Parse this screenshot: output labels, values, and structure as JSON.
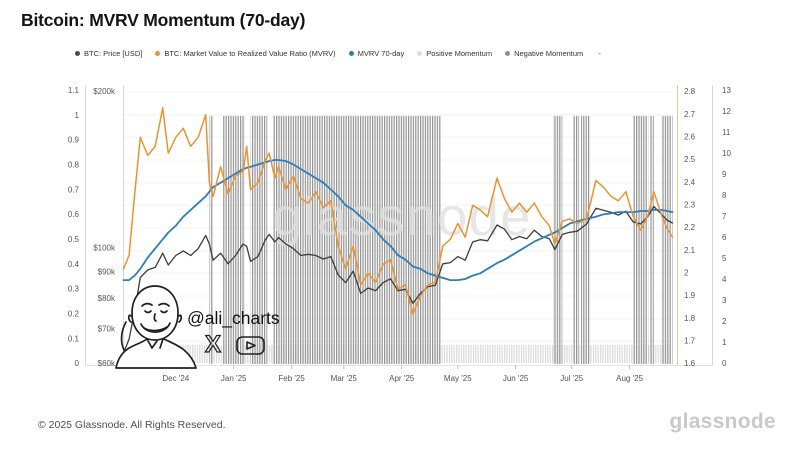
{
  "title": "Bitcoin: MVRV Momentum (70-day)",
  "legend": {
    "items": [
      {
        "label": "BTC: Price [USD]",
        "color": "#4b4b4b"
      },
      {
        "label": "BTC: Market Value to Realized Value Ratio (MVRV)",
        "color": "#ea9430"
      },
      {
        "label": "MVRV 70-day",
        "color": "#2e7dbc"
      },
      {
        "label": "Positive Momentum",
        "color": "#dcdcdc"
      },
      {
        "label": "Negative Momentum",
        "color": "#909090"
      }
    ],
    "more": "-"
  },
  "watermark": "glassnode",
  "annotation": {
    "handle": "@ali_charts"
  },
  "footer": {
    "copyright": "© 2025 Glassnode. All Rights Reserved.",
    "brand": "glassnode"
  },
  "chart_data": {
    "type": "line",
    "title": "Bitcoin: MVRV Momentum (70-day)",
    "grid": "faint-horizontal",
    "legend_position": "top",
    "colors": {
      "price": "#3d3d3d",
      "mvrv": "#ea9430",
      "mvrv70": "#2e7dbc",
      "negative_bars": "#949494",
      "positive_band": "#d9d9d9",
      "mvrv_axis_line": "#f1c78e"
    },
    "axes": {
      "left_outer": {
        "min": 0,
        "max": 1.1,
        "step": 0.1
      },
      "price_log": {
        "values": [
          60,
          70,
          80,
          90,
          100,
          200
        ],
        "labels": [
          "$60k",
          "$70k",
          "$80k",
          "$90k",
          "$100k",
          "$200k"
        ],
        "min": 60,
        "max": 200,
        "scale": "log",
        "unit": "USD thousands"
      },
      "right_mvrv": {
        "min": 1.6,
        "max": 2.8,
        "step": 0.1
      },
      "right_outer": {
        "min": 0,
        "max": 13,
        "step": 1
      }
    },
    "months": [
      {
        "label": "Dec '24",
        "date": "2024-12-01"
      },
      {
        "label": "Jan '25",
        "date": "2025-01-01"
      },
      {
        "label": "Feb '25",
        "date": "2025-02-01"
      },
      {
        "label": "Mar '25",
        "date": "2025-03-01"
      },
      {
        "label": "Apr '25",
        "date": "2025-04-01"
      },
      {
        "label": "May '25",
        "date": "2025-05-01"
      },
      {
        "label": "Jun '25",
        "date": "2025-06-01"
      },
      {
        "label": "Jul '25",
        "date": "2025-07-01"
      },
      {
        "label": "Aug '25",
        "date": "2025-08-01"
      }
    ],
    "dates": [
      "2024-11-03",
      "2024-11-06",
      "2024-11-09",
      "2024-11-12",
      "2024-11-16",
      "2024-11-20",
      "2024-11-24",
      "2024-11-27",
      "2024-12-01",
      "2024-12-05",
      "2024-12-09",
      "2024-12-13",
      "2024-12-17",
      "2024-12-19",
      "2024-12-21",
      "2024-12-25",
      "2024-12-29",
      "2025-01-02",
      "2025-01-06",
      "2025-01-08",
      "2025-01-10",
      "2025-01-14",
      "2025-01-18",
      "2025-01-20",
      "2025-01-23",
      "2025-01-25",
      "2025-01-29",
      "2025-02-02",
      "2025-02-06",
      "2025-02-10",
      "2025-02-14",
      "2025-02-18",
      "2025-02-22",
      "2025-02-26",
      "2025-03-02",
      "2025-03-06",
      "2025-03-10",
      "2025-03-14",
      "2025-03-18",
      "2025-03-22",
      "2025-03-26",
      "2025-03-30",
      "2025-04-03",
      "2025-04-07",
      "2025-04-11",
      "2025-04-15",
      "2025-04-19",
      "2025-04-23",
      "2025-04-27",
      "2025-05-01",
      "2025-05-05",
      "2025-05-09",
      "2025-05-13",
      "2025-05-17",
      "2025-05-22",
      "2025-05-26",
      "2025-05-30",
      "2025-06-03",
      "2025-06-07",
      "2025-06-11",
      "2025-06-15",
      "2025-06-19",
      "2025-06-22",
      "2025-06-26",
      "2025-06-30",
      "2025-07-04",
      "2025-07-09",
      "2025-07-14",
      "2025-07-18",
      "2025-07-22",
      "2025-07-26",
      "2025-07-30",
      "2025-08-03",
      "2025-08-07",
      "2025-08-11",
      "2025-08-14",
      "2025-08-18",
      "2025-08-21",
      "2025-08-24"
    ],
    "series": [
      {
        "name": "BTC: Price [USD]",
        "axis": "price_log",
        "color": "#3d3d3d",
        "unit": "USD (thousands)",
        "values": [
          63,
          67,
          76,
          88,
          91,
          92,
          98,
          93,
          97,
          99,
          97,
          100,
          106,
          102,
          95,
          98,
          93.5,
          97,
          102,
          101,
          94.5,
          96.5,
          104,
          106.5,
          103,
          105,
          102,
          100,
          97,
          97.5,
          97,
          95.5,
          96.5,
          89,
          86,
          90.5,
          82,
          84,
          83,
          86,
          87.5,
          83,
          83.5,
          78.5,
          82,
          84.5,
          85,
          93.5,
          94,
          96.5,
          95,
          103,
          104,
          103.5,
          111,
          109,
          104,
          105.5,
          104.5,
          108.5,
          105.5,
          104.5,
          99.5,
          106.5,
          107.5,
          108,
          111.5,
          119.5,
          118.5,
          117.5,
          116,
          118,
          112.5,
          111.5,
          115.5,
          120.5,
          116.5,
          113.5,
          112
        ]
      },
      {
        "name": "BTC: Market Value to Realized Value Ratio (MVRV)",
        "axis": "right_mvrv",
        "color": "#ea9430",
        "values": [
          2.02,
          2.08,
          2.35,
          2.6,
          2.52,
          2.56,
          2.73,
          2.53,
          2.6,
          2.64,
          2.56,
          2.6,
          2.7,
          2.4,
          2.34,
          2.47,
          2.35,
          2.43,
          2.45,
          2.56,
          2.37,
          2.4,
          2.5,
          2.53,
          2.42,
          2.47,
          2.37,
          2.43,
          2.33,
          2.31,
          2.36,
          2.29,
          2.32,
          2.12,
          2.02,
          2.12,
          1.95,
          2.0,
          1.96,
          2.04,
          2.06,
          1.93,
          1.95,
          1.82,
          1.9,
          1.95,
          1.96,
          2.12,
          2.15,
          2.22,
          2.16,
          2.3,
          2.28,
          2.25,
          2.42,
          2.33,
          2.27,
          2.31,
          2.27,
          2.31,
          2.25,
          2.21,
          2.13,
          2.23,
          2.24,
          2.22,
          2.24,
          2.41,
          2.38,
          2.34,
          2.32,
          2.36,
          2.25,
          2.19,
          2.26,
          2.36,
          2.26,
          2.2,
          2.16
        ]
      },
      {
        "name": "MVRV 70-day",
        "axis": "right_mvrv",
        "color": "#2e7dbc",
        "values": [
          1.97,
          1.97,
          1.99,
          2.02,
          2.07,
          2.11,
          2.15,
          2.18,
          2.21,
          2.25,
          2.28,
          2.31,
          2.34,
          2.36,
          2.38,
          2.4,
          2.42,
          2.44,
          2.46,
          2.465,
          2.47,
          2.48,
          2.49,
          2.495,
          2.5,
          2.5,
          2.495,
          2.48,
          2.46,
          2.44,
          2.42,
          2.4,
          2.37,
          2.34,
          2.3,
          2.28,
          2.25,
          2.22,
          2.19,
          2.15,
          2.12,
          2.08,
          2.06,
          2.03,
          2.02,
          2.0,
          1.99,
          1.98,
          1.97,
          1.97,
          1.975,
          1.99,
          2.0,
          2.02,
          2.045,
          2.06,
          2.08,
          2.1,
          2.12,
          2.14,
          2.155,
          2.17,
          2.18,
          2.2,
          2.22,
          2.23,
          2.24,
          2.25,
          2.26,
          2.265,
          2.27,
          2.27,
          2.27,
          2.275,
          2.275,
          2.28,
          2.28,
          2.275,
          2.27
        ]
      }
    ],
    "momentum": {
      "bar_top_value_left_axis": 1.0,
      "negative_intervals": [
        [
          "2024-12-19",
          "2024-12-21"
        ],
        [
          "2024-12-26",
          "2025-01-07"
        ],
        [
          "2025-01-10",
          "2025-01-19"
        ],
        [
          "2025-01-22",
          "2025-04-22"
        ],
        [
          "2025-06-21",
          "2025-06-26"
        ],
        [
          "2025-07-02",
          "2025-07-05"
        ],
        [
          "2025-07-06",
          "2025-07-11"
        ],
        [
          "2025-08-03",
          "2025-08-11"
        ],
        [
          "2025-08-12",
          "2025-08-14"
        ],
        [
          "2025-08-18",
          "2025-08-24"
        ]
      ],
      "positive_band": {
        "start": "2024-11-10",
        "end": "2025-08-24"
      }
    }
  }
}
